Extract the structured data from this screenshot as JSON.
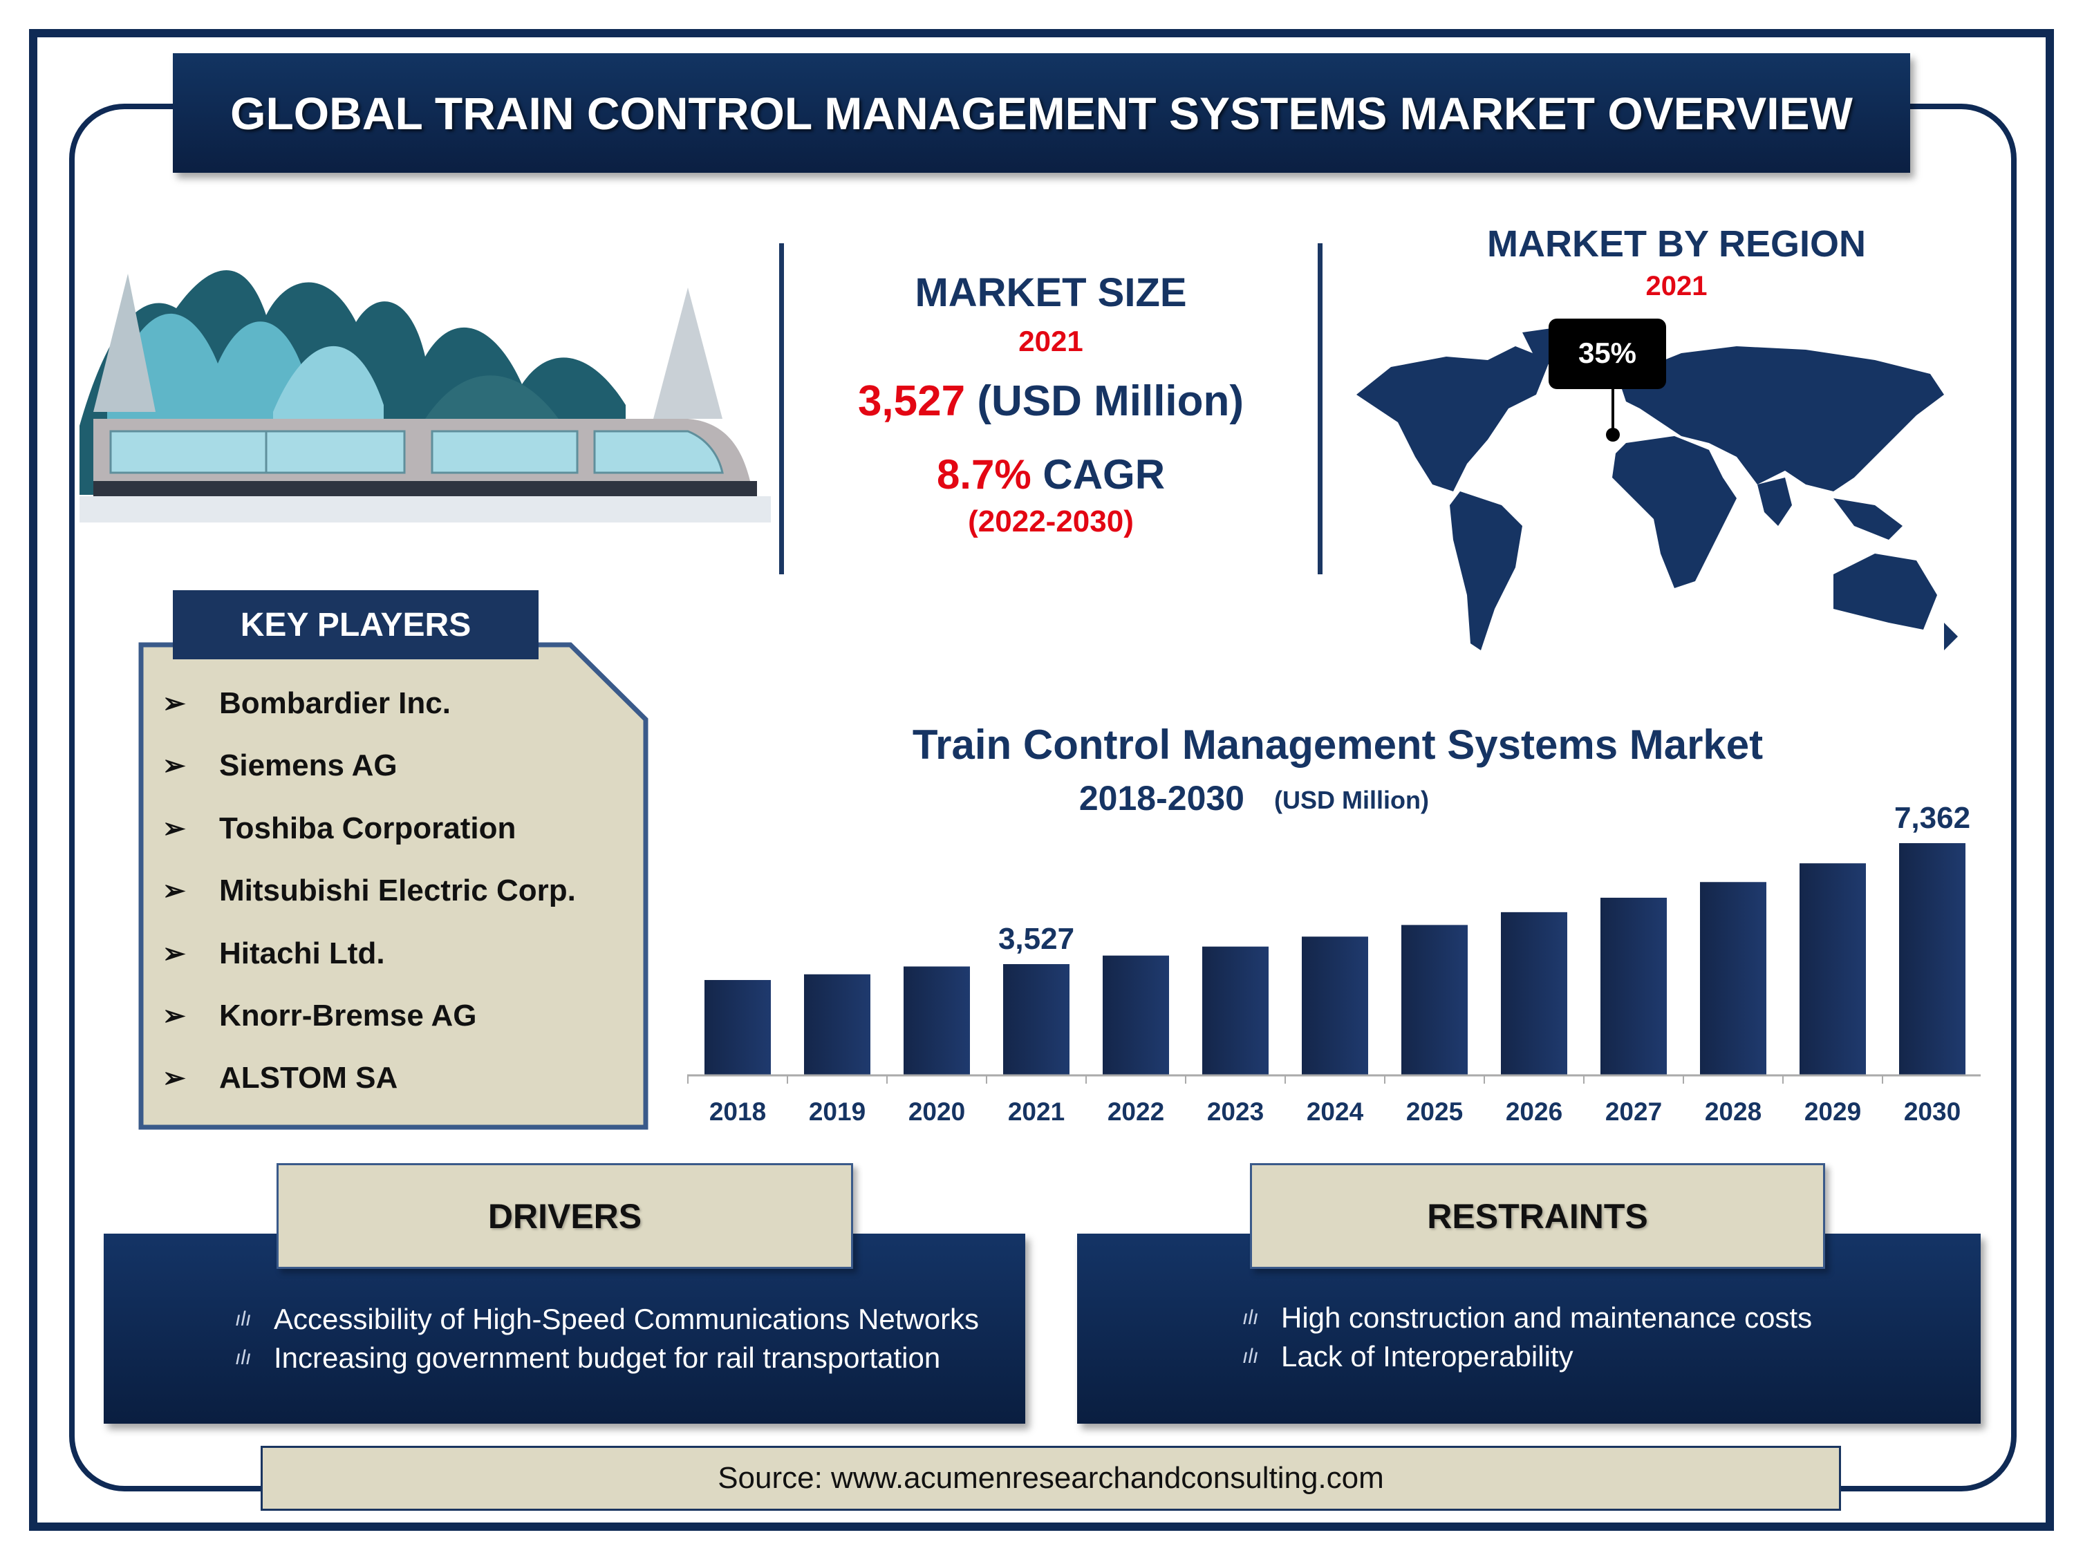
{
  "header": {
    "title": "GLOBAL TRAIN CONTROL MANAGEMENT SYSTEMS MARKET OVERVIEW"
  },
  "market_size": {
    "heading": "MARKET SIZE",
    "year": "2021",
    "value": "3,527",
    "unit": "(USD Million)",
    "cagr_value": "8.7%",
    "cagr_label": "CAGR",
    "cagr_period": "(2022-2030)"
  },
  "region": {
    "heading": "MARKET BY REGION",
    "year": "2021",
    "callout": "35%"
  },
  "key_players": {
    "heading": "KEY PLAYERS",
    "items": [
      "Bombardier Inc.",
      "Siemens AG",
      "Toshiba Corporation",
      "Mitsubishi Electric Corp.",
      "Hitachi Ltd.",
      "Knorr-Bremse AG",
      "ALSTOM SA"
    ]
  },
  "drivers": {
    "heading": "DRIVERS",
    "items": [
      "Accessibility of High-Speed Communications Networks",
      "Increasing government budget for rail transportation"
    ]
  },
  "restraints": {
    "heading": "RESTRAINTS",
    "items": [
      "High construction and maintenance costs",
      "Lack of Interoperability"
    ]
  },
  "source": "Source: www.acumenresearchandconsulting.com",
  "colors": {
    "navy": "#163463",
    "red": "#e30613",
    "beige": "#ddd9c3",
    "bar": "#1b3463"
  },
  "chart_data": {
    "type": "bar",
    "title": "Train Control Management Systems Market",
    "subtitle": "2018-2030",
    "unit": "(USD Million)",
    "categories": [
      "2018",
      "2019",
      "2020",
      "2021",
      "2022",
      "2023",
      "2024",
      "2025",
      "2026",
      "2027",
      "2028",
      "2029",
      "2030"
    ],
    "values": [
      3023,
      3204,
      3452,
      3527,
      3798,
      4083,
      4399,
      4768,
      5174,
      5632,
      6129,
      6723,
      7362
    ],
    "data_labels": {
      "2021": "3,527",
      "2030": "7,362"
    },
    "ylim": [
      0,
      7362
    ],
    "grid": false,
    "legend": "none"
  }
}
